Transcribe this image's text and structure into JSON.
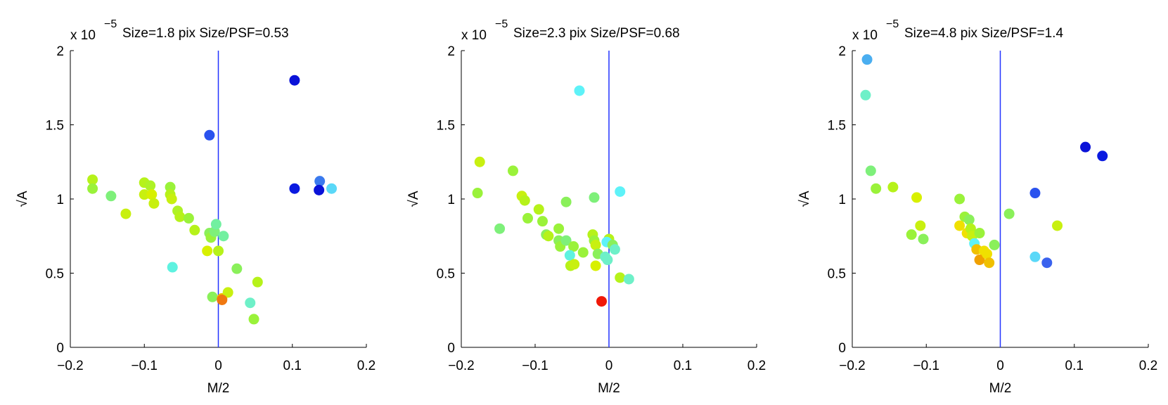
{
  "chart_data": [
    {
      "type": "scatter",
      "title": "Size=1.8 pix Size/PSF=0.53",
      "exponent_label": "x 10",
      "exponent": "−5",
      "xlabel": "M/2",
      "ylabel": "√A",
      "xlim": [
        -0.2,
        0.2
      ],
      "ylim": [
        0,
        2
      ],
      "xticks": [
        "−0.2",
        "−0.1",
        "0",
        "0.1",
        "0.2"
      ],
      "yticks": [
        "0",
        "0.5",
        "1",
        "1.5",
        "2"
      ],
      "vline": 0,
      "grid": false,
      "points": [
        {
          "x": -0.17,
          "y": 1.13,
          "c": "#b6f21a"
        },
        {
          "x": -0.17,
          "y": 1.07,
          "c": "#9af23a"
        },
        {
          "x": -0.145,
          "y": 1.02,
          "c": "#7ef07a"
        },
        {
          "x": -0.125,
          "y": 0.9,
          "c": "#c8f010"
        },
        {
          "x": -0.1,
          "y": 1.11,
          "c": "#b6f21a"
        },
        {
          "x": -0.092,
          "y": 1.09,
          "c": "#aef226"
        },
        {
          "x": -0.1,
          "y": 1.03,
          "c": "#c8f010"
        },
        {
          "x": -0.09,
          "y": 1.03,
          "c": "#d8f000"
        },
        {
          "x": -0.087,
          "y": 0.97,
          "c": "#c8f010"
        },
        {
          "x": -0.065,
          "y": 1.08,
          "c": "#9af23a"
        },
        {
          "x": -0.065,
          "y": 1.03,
          "c": "#b6f21a"
        },
        {
          "x": -0.063,
          "y": 1.0,
          "c": "#c8f010"
        },
        {
          "x": -0.055,
          "y": 0.92,
          "c": "#aef226"
        },
        {
          "x": -0.052,
          "y": 0.88,
          "c": "#b6f21a"
        },
        {
          "x": -0.04,
          "y": 0.87,
          "c": "#9af23a"
        },
        {
          "x": -0.032,
          "y": 0.79,
          "c": "#b6f21a"
        },
        {
          "x": -0.012,
          "y": 0.77,
          "c": "#8af05a"
        },
        {
          "x": -0.01,
          "y": 0.74,
          "c": "#9af23a"
        },
        {
          "x": -0.005,
          "y": 0.78,
          "c": "#7ef07a"
        },
        {
          "x": -0.003,
          "y": 0.83,
          "c": "#72f0a0"
        },
        {
          "x": 0.007,
          "y": 0.75,
          "c": "#72f0a0"
        },
        {
          "x": -0.015,
          "y": 0.65,
          "c": "#d8f000"
        },
        {
          "x": 0.0,
          "y": 0.65,
          "c": "#b6f21a"
        },
        {
          "x": -0.062,
          "y": 0.54,
          "c": "#5ef2e0"
        },
        {
          "x": 0.025,
          "y": 0.53,
          "c": "#8af05a"
        },
        {
          "x": 0.053,
          "y": 0.44,
          "c": "#b6f21a"
        },
        {
          "x": -0.008,
          "y": 0.34,
          "c": "#8af05a"
        },
        {
          "x": 0.005,
          "y": 0.33,
          "c": "#f0c000"
        },
        {
          "x": 0.013,
          "y": 0.37,
          "c": "#c8f010"
        },
        {
          "x": 0.005,
          "y": 0.32,
          "c": "#f07810"
        },
        {
          "x": 0.043,
          "y": 0.3,
          "c": "#6ef0c8"
        },
        {
          "x": 0.048,
          "y": 0.19,
          "c": "#9af23a"
        },
        {
          "x": -0.012,
          "y": 1.43,
          "c": "#2a52ee"
        },
        {
          "x": 0.103,
          "y": 1.8,
          "c": "#0a12d8"
        },
        {
          "x": 0.103,
          "y": 1.07,
          "c": "#0a1ae0"
        },
        {
          "x": 0.137,
          "y": 1.12,
          "c": "#3a7aee"
        },
        {
          "x": 0.136,
          "y": 1.06,
          "c": "#0a12d8"
        },
        {
          "x": 0.153,
          "y": 1.07,
          "c": "#5ad8f8"
        }
      ]
    },
    {
      "type": "scatter",
      "title": "Size=2.3 pix Size/PSF=0.68",
      "exponent_label": "x 10",
      "exponent": "−5",
      "xlabel": "M/2",
      "ylabel": "√A",
      "xlim": [
        -0.2,
        0.2
      ],
      "ylim": [
        0,
        2
      ],
      "xticks": [
        "−0.2",
        "−0.1",
        "0",
        "0.1",
        "0.2"
      ],
      "yticks": [
        "0",
        "0.5",
        "1",
        "1.5",
        "2"
      ],
      "vline": 0,
      "grid": false,
      "points": [
        {
          "x": -0.178,
          "y": 1.04,
          "c": "#9af23a"
        },
        {
          "x": -0.175,
          "y": 1.25,
          "c": "#c8f010"
        },
        {
          "x": -0.13,
          "y": 1.19,
          "c": "#9af23a"
        },
        {
          "x": -0.148,
          "y": 0.8,
          "c": "#7ef07a"
        },
        {
          "x": -0.118,
          "y": 1.02,
          "c": "#c8f010"
        },
        {
          "x": -0.114,
          "y": 0.99,
          "c": "#b6f21a"
        },
        {
          "x": -0.11,
          "y": 0.87,
          "c": "#9af23a"
        },
        {
          "x": -0.095,
          "y": 0.93,
          "c": "#b6f21a"
        },
        {
          "x": -0.09,
          "y": 0.85,
          "c": "#9af23a"
        },
        {
          "x": -0.085,
          "y": 0.76,
          "c": "#8af05a"
        },
        {
          "x": -0.082,
          "y": 0.75,
          "c": "#b6f21a"
        },
        {
          "x": -0.068,
          "y": 0.8,
          "c": "#9af23a"
        },
        {
          "x": -0.068,
          "y": 0.72,
          "c": "#8af05a"
        },
        {
          "x": -0.066,
          "y": 0.68,
          "c": "#9af23a"
        },
        {
          "x": -0.058,
          "y": 0.98,
          "c": "#8af05a"
        },
        {
          "x": -0.058,
          "y": 0.72,
          "c": "#7ef07a"
        },
        {
          "x": -0.048,
          "y": 0.68,
          "c": "#9af23a"
        },
        {
          "x": -0.053,
          "y": 0.62,
          "c": "#5ef2e0"
        },
        {
          "x": -0.052,
          "y": 0.55,
          "c": "#b6f21a"
        },
        {
          "x": -0.047,
          "y": 0.56,
          "c": "#c8f010"
        },
        {
          "x": -0.04,
          "y": 1.73,
          "c": "#5ef2f8"
        },
        {
          "x": -0.035,
          "y": 0.64,
          "c": "#9af23a"
        },
        {
          "x": -0.022,
          "y": 0.76,
          "c": "#b6f21a"
        },
        {
          "x": -0.02,
          "y": 0.72,
          "c": "#9af23a"
        },
        {
          "x": -0.018,
          "y": 0.69,
          "c": "#c8f010"
        },
        {
          "x": -0.015,
          "y": 0.63,
          "c": "#8af05a"
        },
        {
          "x": -0.018,
          "y": 0.55,
          "c": "#d8f000"
        },
        {
          "x": -0.02,
          "y": 1.01,
          "c": "#7ef07a"
        },
        {
          "x": -0.005,
          "y": 0.61,
          "c": "#6ef0c8"
        },
        {
          "x": 0.0,
          "y": 0.73,
          "c": "#b6f21a"
        },
        {
          "x": -0.003,
          "y": 0.71,
          "c": "#5ef2f8"
        },
        {
          "x": 0.005,
          "y": 0.69,
          "c": "#8af05a"
        },
        {
          "x": 0.008,
          "y": 0.66,
          "c": "#6ef0c8"
        },
        {
          "x": -0.002,
          "y": 0.59,
          "c": "#6ef0c8"
        },
        {
          "x": 0.015,
          "y": 1.05,
          "c": "#5ef2f8"
        },
        {
          "x": 0.015,
          "y": 0.47,
          "c": "#b6f21a"
        },
        {
          "x": 0.027,
          "y": 0.46,
          "c": "#6ef0c8"
        },
        {
          "x": -0.01,
          "y": 0.31,
          "c": "#f01808"
        }
      ]
    },
    {
      "type": "scatter",
      "title": "Size=4.8 pix Size/PSF=1.4",
      "exponent_label": "x 10",
      "exponent": "−5",
      "xlabel": "M/2",
      "ylabel": "√A",
      "xlim": [
        -0.2,
        0.2
      ],
      "ylim": [
        0,
        2
      ],
      "xticks": [
        "−0.2",
        "−0.1",
        "0",
        "0.1",
        "0.2"
      ],
      "yticks": [
        "0",
        "0.5",
        "1",
        "1.5",
        "2"
      ],
      "vline": 0,
      "grid": false,
      "points": [
        {
          "x": -0.18,
          "y": 1.94,
          "c": "#4aaef0"
        },
        {
          "x": -0.182,
          "y": 1.7,
          "c": "#6ef0c8"
        },
        {
          "x": -0.175,
          "y": 1.19,
          "c": "#7ef07a"
        },
        {
          "x": -0.168,
          "y": 1.07,
          "c": "#9af23a"
        },
        {
          "x": -0.145,
          "y": 1.08,
          "c": "#b6f21a"
        },
        {
          "x": -0.113,
          "y": 1.01,
          "c": "#d8f000"
        },
        {
          "x": -0.108,
          "y": 0.82,
          "c": "#c8f010"
        },
        {
          "x": -0.12,
          "y": 0.76,
          "c": "#9af23a"
        },
        {
          "x": -0.104,
          "y": 0.73,
          "c": "#8af05a"
        },
        {
          "x": -0.055,
          "y": 1.0,
          "c": "#9af23a"
        },
        {
          "x": -0.048,
          "y": 0.88,
          "c": "#9af23a"
        },
        {
          "x": -0.042,
          "y": 0.86,
          "c": "#8af05a"
        },
        {
          "x": -0.055,
          "y": 0.82,
          "c": "#f0e000"
        },
        {
          "x": -0.045,
          "y": 0.77,
          "c": "#f0e000"
        },
        {
          "x": -0.04,
          "y": 0.8,
          "c": "#b6f21a"
        },
        {
          "x": -0.038,
          "y": 0.75,
          "c": "#c8f010"
        },
        {
          "x": -0.035,
          "y": 0.7,
          "c": "#5ef2f8"
        },
        {
          "x": -0.028,
          "y": 0.77,
          "c": "#9af23a"
        },
        {
          "x": -0.032,
          "y": 0.66,
          "c": "#f0c000"
        },
        {
          "x": -0.022,
          "y": 0.65,
          "c": "#f0e000"
        },
        {
          "x": -0.028,
          "y": 0.59,
          "c": "#f0a000"
        },
        {
          "x": -0.018,
          "y": 0.63,
          "c": "#f0e000"
        },
        {
          "x": -0.015,
          "y": 0.57,
          "c": "#f0c000"
        },
        {
          "x": -0.008,
          "y": 0.69,
          "c": "#8af05a"
        },
        {
          "x": 0.012,
          "y": 0.9,
          "c": "#8af05a"
        },
        {
          "x": 0.047,
          "y": 1.04,
          "c": "#2a52ee"
        },
        {
          "x": 0.047,
          "y": 0.61,
          "c": "#5ad8f8"
        },
        {
          "x": 0.063,
          "y": 0.57,
          "c": "#3a62ee"
        },
        {
          "x": 0.077,
          "y": 0.82,
          "c": "#c8f010"
        },
        {
          "x": 0.115,
          "y": 1.35,
          "c": "#0a12d8"
        },
        {
          "x": 0.138,
          "y": 1.29,
          "c": "#0a1ae0"
        }
      ]
    }
  ]
}
